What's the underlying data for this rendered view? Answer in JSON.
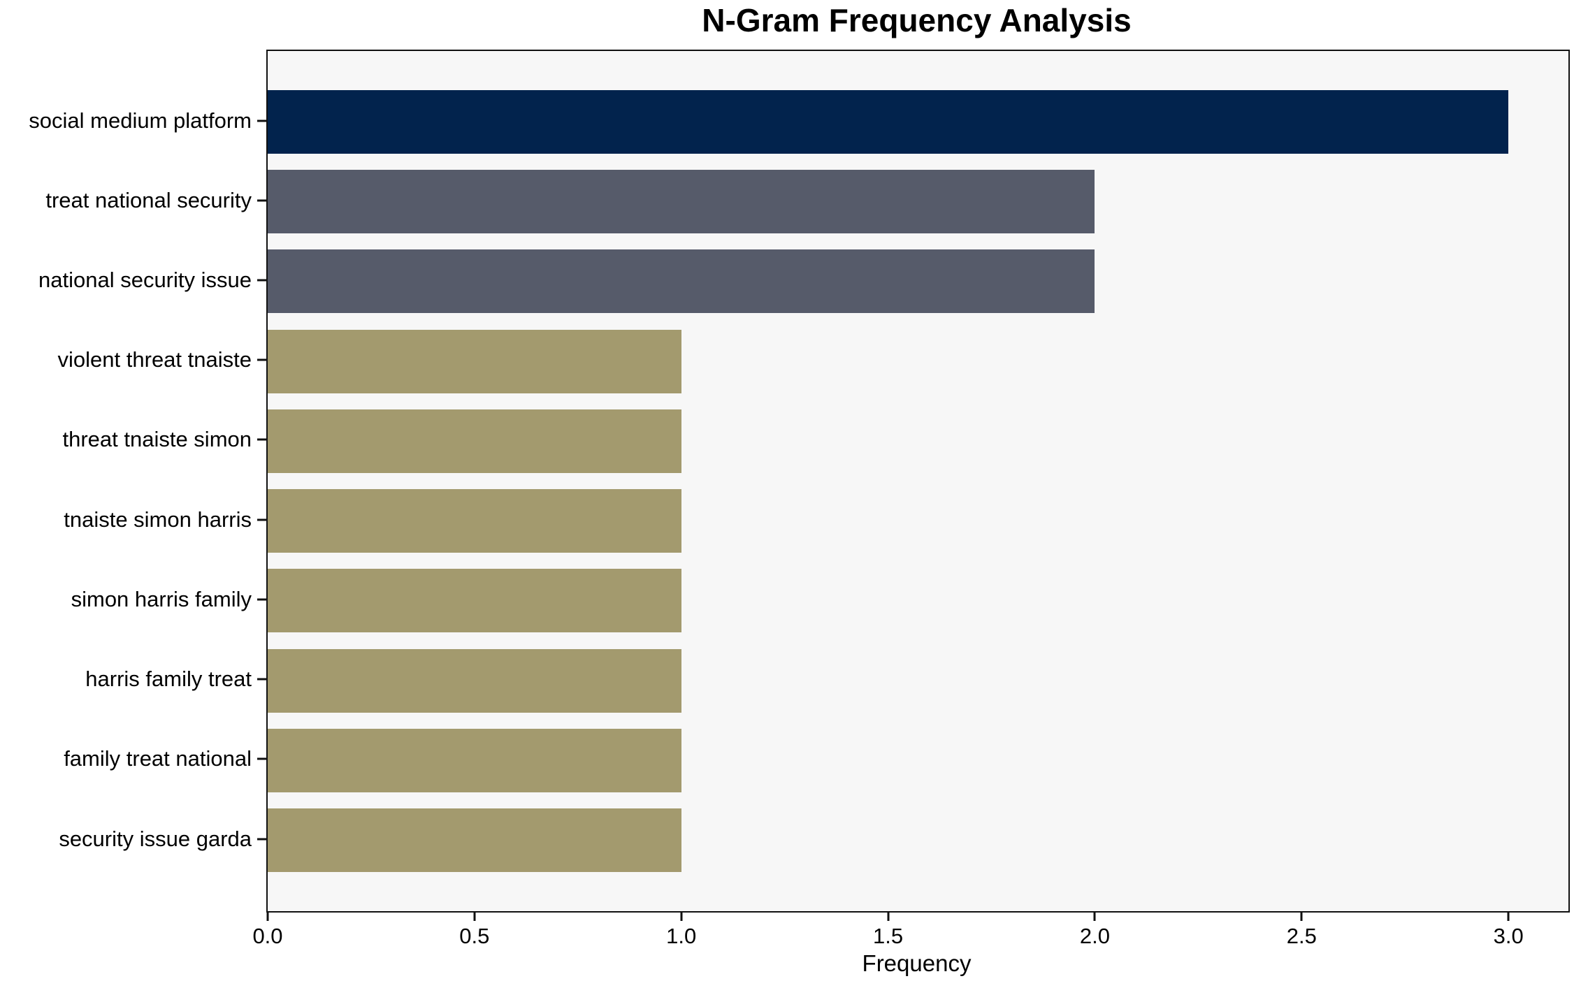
{
  "chart_data": {
    "type": "bar",
    "orientation": "horizontal",
    "title": "N-Gram Frequency Analysis",
    "xlabel": "Frequency",
    "ylabel": "",
    "categories": [
      "social medium platform",
      "treat national security",
      "national security issue",
      "violent threat tnaiste",
      "threat tnaiste simon",
      "tnaiste simon harris",
      "simon harris family",
      "harris family treat",
      "family treat national",
      "security issue garda"
    ],
    "values": [
      3,
      2,
      2,
      1,
      1,
      1,
      1,
      1,
      1,
      1
    ],
    "bar_colors": [
      "#02234d",
      "#565b6a",
      "#565b6a",
      "#a39a6e",
      "#a39a6e",
      "#a39a6e",
      "#a39a6e",
      "#a39a6e",
      "#a39a6e",
      "#a39a6e"
    ],
    "xlim": [
      0,
      3.145
    ],
    "xticks": [
      0,
      0.5,
      1.0,
      1.5,
      2.0,
      2.5,
      3.0
    ],
    "xtick_labels": [
      "0.0",
      "0.5",
      "1.0",
      "1.5",
      "2.0",
      "2.5",
      "3.0"
    ],
    "grid": false,
    "legend": null,
    "colors": {
      "plot_background": "#f7f7f7",
      "figure_background": "#ffffff",
      "spine": "#111111",
      "text": "#000000"
    }
  }
}
